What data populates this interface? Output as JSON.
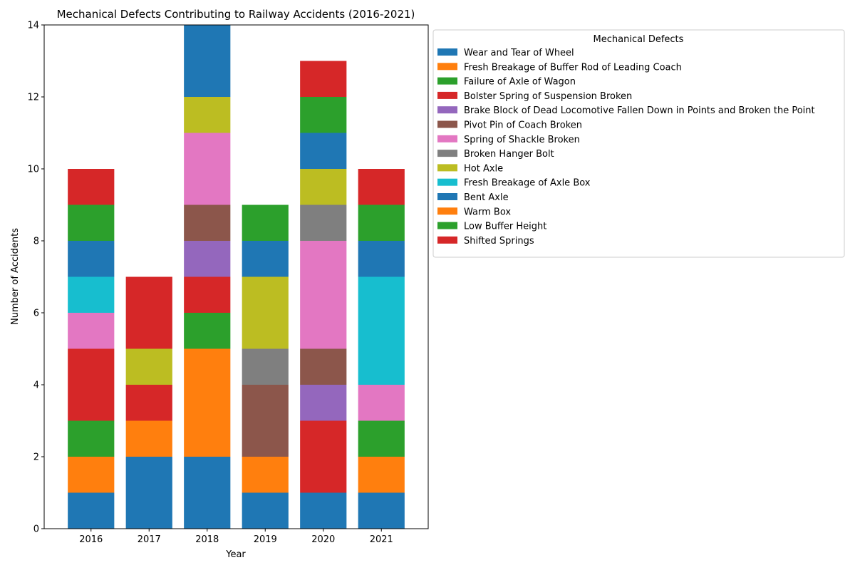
{
  "chart_data": {
    "type": "bar",
    "stacked": true,
    "title": "Mechanical Defects Contributing to Railway Accidents (2016-2021)",
    "xlabel": "Year",
    "ylabel": "Number of Accidents",
    "categories": [
      "2016",
      "2017",
      "2018",
      "2019",
      "2020",
      "2021"
    ],
    "ylim": [
      0,
      14
    ],
    "yticks": [
      0,
      2,
      4,
      6,
      8,
      10,
      12,
      14
    ],
    "grid": false,
    "legend": {
      "title": "Mechanical Defects",
      "placement": "outside upper right"
    },
    "series": [
      {
        "name": "Wear and Tear of Wheel",
        "color": "#1f77b4",
        "values": [
          1,
          2,
          2,
          1,
          1,
          1
        ]
      },
      {
        "name": "Fresh Breakage of Buffer Rod of Leading Coach",
        "color": "#ff7f0e",
        "values": [
          1,
          1,
          3,
          1,
          0,
          1
        ]
      },
      {
        "name": "Failure of Axle of Wagon",
        "color": "#2ca02c",
        "values": [
          1,
          0,
          1,
          0,
          0,
          1
        ]
      },
      {
        "name": "Bolster Spring of Suspension Broken",
        "color": "#d62728",
        "values": [
          2,
          1,
          1,
          0,
          2,
          0
        ]
      },
      {
        "name": "Brake Block of Dead Locomotive Fallen Down in Points and Broken the Point",
        "color": "#9467bd",
        "values": [
          0,
          0,
          1,
          0,
          1,
          0
        ]
      },
      {
        "name": "Pivot Pin of Coach Broken",
        "color": "#8c564b",
        "values": [
          0,
          0,
          1,
          2,
          1,
          0
        ]
      },
      {
        "name": "Spring of Shackle Broken",
        "color": "#e377c2",
        "values": [
          1,
          0,
          2,
          0,
          3,
          1
        ]
      },
      {
        "name": "Broken Hanger Bolt",
        "color": "#7f7f7f",
        "values": [
          0,
          0,
          0,
          1,
          1,
          0
        ]
      },
      {
        "name": "Hot Axle",
        "color": "#bcbd22",
        "values": [
          0,
          1,
          1,
          2,
          1,
          0
        ]
      },
      {
        "name": "Fresh Breakage of Axle Box",
        "color": "#17becf",
        "values": [
          1,
          0,
          0,
          0,
          0,
          3
        ]
      },
      {
        "name": "Bent Axle",
        "color": "#1f77b4",
        "values": [
          1,
          0,
          2,
          1,
          1,
          1
        ]
      },
      {
        "name": "Warm Box",
        "color": "#ff7f0e",
        "values": [
          0,
          0,
          0,
          0,
          0,
          0
        ]
      },
      {
        "name": "Low Buffer Height",
        "color": "#2ca02c",
        "values": [
          1,
          0,
          0,
          1,
          1,
          1
        ]
      },
      {
        "name": "Shifted Springs",
        "color": "#d62728",
        "values": [
          1,
          2,
          0,
          0,
          1,
          1
        ]
      }
    ]
  }
}
